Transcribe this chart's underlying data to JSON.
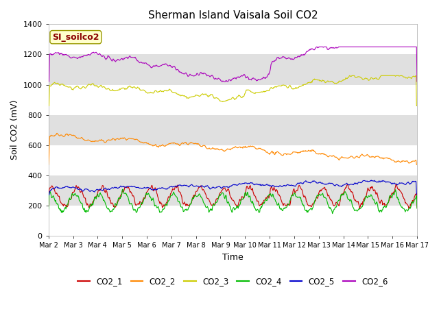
{
  "title": "Sherman Island Vaisala Soil CO2",
  "ylabel": "Soil CO2 (mV)",
  "xlabel": "Time",
  "watermark": "SI_soilco2",
  "ylim": [
    0,
    1400
  ],
  "yticks": [
    0,
    200,
    400,
    600,
    800,
    1000,
    1200,
    1400
  ],
  "xtick_labels": [
    "Mar 2",
    "Mar 3",
    "Mar 4",
    "Mar 5",
    "Mar 6",
    "Mar 7",
    "Mar 8",
    "Mar 9",
    "Mar 10",
    "Mar 11",
    "Mar 12",
    "Mar 13",
    "Mar 14",
    "Mar 15",
    "Mar 16",
    "Mar 17"
  ],
  "series_colors": [
    "#cc0000",
    "#ff8800",
    "#cccc00",
    "#00bb00",
    "#0000cc",
    "#aa00bb"
  ],
  "series_labels": [
    "CO2_1",
    "CO2_2",
    "CO2_3",
    "CO2_4",
    "CO2_5",
    "CO2_6"
  ],
  "background_color": "#ffffff",
  "plot_bg_color": "#ffffff",
  "band_color": "#e0e0e0",
  "title_fontsize": 11,
  "axis_label_fontsize": 9,
  "tick_fontsize": 8,
  "n_points": 720,
  "seed": 42
}
